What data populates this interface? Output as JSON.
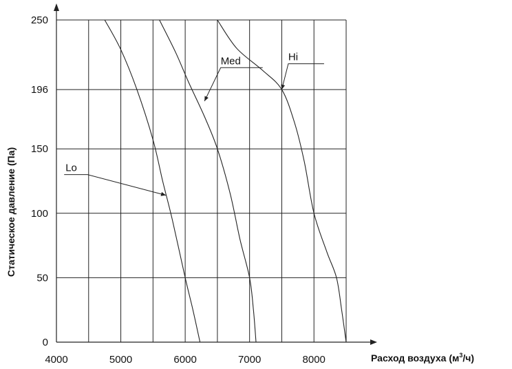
{
  "chart_data": {
    "type": "line",
    "xlabel": "Расход воздуха (м",
    "xlabel_sup": "3",
    "xlabel_suffix": "/ч)",
    "ylabel": "Статическое давление (Па)",
    "xlim": [
      4000,
      8500
    ],
    "ylim": [
      0,
      250
    ],
    "x_ticks": [
      4000,
      5000,
      6000,
      7000,
      8000
    ],
    "y_ticks": [
      0,
      50,
      100,
      150,
      196,
      250
    ],
    "x_grid": [
      4500,
      5000,
      5500,
      6000,
      6500,
      7000,
      7500,
      8000,
      8500
    ],
    "y_grid": [
      50,
      100,
      150,
      196,
      250
    ],
    "grid": true,
    "series": [
      {
        "name": "Lo",
        "points": [
          [
            4750,
            250
          ],
          [
            5000,
            227
          ],
          [
            5250,
            196
          ],
          [
            5500,
            157
          ],
          [
            5650,
            125
          ],
          [
            5800,
            95
          ],
          [
            6000,
            50
          ],
          [
            6120,
            25
          ],
          [
            6230,
            0
          ]
        ]
      },
      {
        "name": "Med",
        "points": [
          [
            5600,
            250
          ],
          [
            5850,
            225
          ],
          [
            6050,
            202
          ],
          [
            6300,
            175
          ],
          [
            6500,
            150
          ],
          [
            6700,
            115
          ],
          [
            6850,
            80
          ],
          [
            7000,
            50
          ],
          [
            7060,
            25
          ],
          [
            7100,
            0
          ]
        ]
      },
      {
        "name": "Hi",
        "points": [
          [
            6500,
            250
          ],
          [
            6800,
            228
          ],
          [
            7200,
            211
          ],
          [
            7500,
            196
          ],
          [
            7700,
            170
          ],
          [
            7850,
            140
          ],
          [
            8000,
            100
          ],
          [
            8200,
            70
          ],
          [
            8350,
            50
          ],
          [
            8430,
            25
          ],
          [
            8500,
            0
          ]
        ]
      }
    ],
    "annotations": [
      {
        "text": "Lo",
        "series": "Lo",
        "label_at": [
          4120,
          130
        ],
        "anchor": [
          5700,
          114
        ]
      },
      {
        "text": "Med",
        "series": "Med",
        "label_at": [
          6530,
          213
        ],
        "anchor": [
          6300,
          187
        ]
      },
      {
        "text": "Hi",
        "series": "Hi",
        "label_at": [
          7580,
          216
        ],
        "anchor": [
          7500,
          196
        ]
      }
    ]
  }
}
